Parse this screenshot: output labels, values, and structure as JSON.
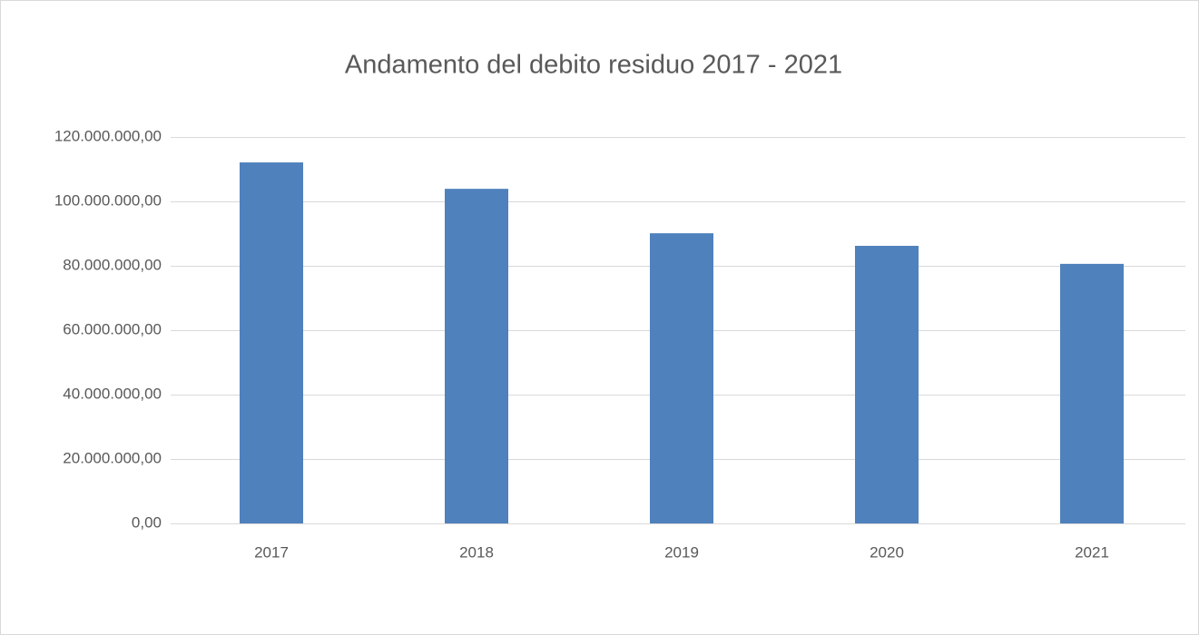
{
  "chart_data": {
    "type": "bar",
    "title": "Andamento del debito residuo 2017 - 2021",
    "categories": [
      "2017",
      "2018",
      "2019",
      "2020",
      "2021"
    ],
    "values": [
      112100000,
      103900000,
      90100000,
      86200000,
      80600000
    ],
    "color": "#4f81bd",
    "ylim": [
      0,
      120000000
    ],
    "yticks": [
      {
        "value": 0,
        "label": "0,00"
      },
      {
        "value": 20000000,
        "label": "20.000.000,00"
      },
      {
        "value": 40000000,
        "label": "40.000.000,00"
      },
      {
        "value": 60000000,
        "label": "60.000.000,00"
      },
      {
        "value": 80000000,
        "label": "80.000.000,00"
      },
      {
        "value": 100000000,
        "label": "100.000.000,00"
      },
      {
        "value": 120000000,
        "label": "120.000.000,00"
      }
    ],
    "grid": true
  }
}
